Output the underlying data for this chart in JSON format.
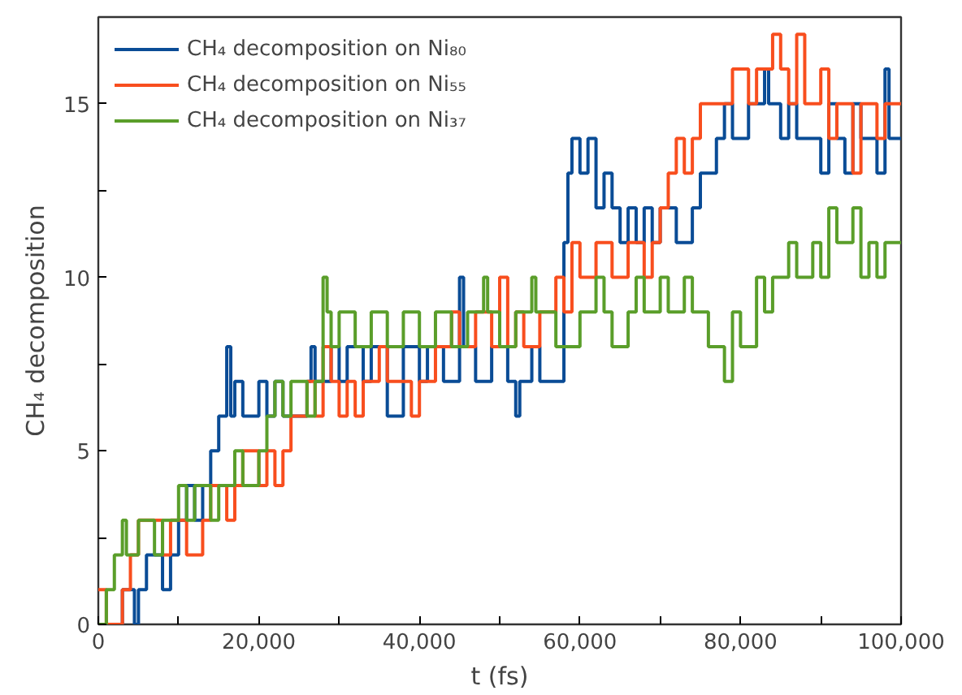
{
  "chart_data": {
    "type": "step",
    "xlabel": "t (fs)",
    "ylabel": "CH₄ decomposition",
    "xlim": [
      0,
      100000
    ],
    "ylim": [
      0,
      17.5
    ],
    "xticks": [
      0,
      {
        "value": 10000,
        "label": null
      },
      {
        "value": 20000,
        "label": "20,000"
      },
      {
        "value": 30000,
        "label": null
      },
      {
        "value": 40000,
        "label": "40,000"
      },
      {
        "value": 50000,
        "label": null
      },
      {
        "value": 60000,
        "label": "60,000"
      },
      {
        "value": 70000,
        "label": null
      },
      {
        "value": 80000,
        "label": "80,000"
      },
      {
        "value": 90000,
        "label": null
      },
      {
        "value": 100000,
        "label": "100,000"
      }
    ],
    "yticks": [
      0,
      {
        "value": 2.5,
        "label": null
      },
      5,
      {
        "value": 7.5,
        "label": null
      },
      10,
      {
        "value": 12.5,
        "label": null
      },
      15
    ],
    "grid": false,
    "legend": "top left",
    "marker": "none",
    "line_style": "solid",
    "series": [
      {
        "name": "CH₄ decomposition on Ni₈₀",
        "color": "#0a4c96",
        "x": [
          0,
          3000,
          4500,
          5000,
          6000,
          8000,
          9000,
          10000,
          11000,
          12000,
          13000,
          14000,
          15000,
          16000,
          16500,
          17000,
          18000,
          20000,
          21000,
          22000,
          23000,
          26000,
          26500,
          27000,
          29000,
          30000,
          31000,
          33000,
          34000,
          36000,
          38000,
          40000,
          41000,
          43000,
          45000,
          45500,
          47000,
          49000,
          51000,
          52000,
          52500,
          54000,
          55000,
          58000,
          58500,
          59000,
          60000,
          61000,
          62000,
          63000,
          64000,
          65000,
          66000,
          67000,
          68000,
          69000,
          70000,
          72000,
          74000,
          75000,
          77000,
          78000,
          79000,
          81000,
          83000,
          83500,
          85000,
          86000,
          87000,
          90000,
          91000,
          92000,
          93000,
          94000,
          95000,
          97000,
          98000,
          98500,
          100000
        ],
        "values": [
          0,
          1,
          0,
          1,
          2,
          1,
          2,
          3,
          4,
          3,
          4,
          5,
          6,
          8,
          6,
          7,
          6,
          7,
          6,
          7,
          6,
          7,
          8,
          7,
          8,
          7,
          8,
          7,
          8,
          6,
          8,
          7,
          8,
          7,
          10,
          8,
          7,
          8,
          7,
          6,
          7,
          8,
          7,
          11,
          13,
          14,
          13,
          14,
          12,
          13,
          12,
          11,
          12,
          11,
          12,
          11,
          12,
          11,
          12,
          13,
          14,
          15,
          14,
          15,
          16,
          15,
          14,
          15,
          14,
          13,
          15,
          14,
          13,
          15,
          14,
          13,
          16,
          14,
          14
        ]
      },
      {
        "name": "CH₄ decomposition on Ni₅₅",
        "color": "#f84e1e",
        "x": [
          0,
          1000,
          3000,
          4000,
          5000,
          8000,
          9000,
          11000,
          13000,
          14000,
          16000,
          17000,
          18000,
          20000,
          21000,
          22000,
          23000,
          24000,
          26000,
          27000,
          28000,
          29000,
          30000,
          31000,
          32000,
          33000,
          35000,
          36000,
          39000,
          40000,
          42000,
          44000,
          45000,
          47000,
          49000,
          50000,
          51000,
          52000,
          53000,
          55000,
          57000,
          58000,
          59000,
          60000,
          62000,
          64000,
          66000,
          68000,
          69000,
          70000,
          71000,
          72000,
          73000,
          74000,
          75000,
          79000,
          81000,
          82000,
          84000,
          85000,
          86000,
          87000,
          88000,
          90000,
          91000,
          92000,
          94000,
          95000,
          97000,
          98000,
          100000
        ],
        "values": [
          1,
          0,
          1,
          2,
          3,
          2,
          3,
          2,
          3,
          4,
          3,
          4,
          5,
          4,
          5,
          4,
          5,
          6,
          7,
          6,
          8,
          7,
          6,
          7,
          6,
          7,
          8,
          7,
          6,
          7,
          8,
          9,
          8,
          9,
          8,
          10,
          8,
          9,
          8,
          9,
          10,
          9,
          11,
          10,
          11,
          10,
          11,
          10,
          11,
          12,
          13,
          14,
          13,
          14,
          15,
          16,
          15,
          16,
          17,
          16,
          15,
          17,
          15,
          16,
          14,
          15,
          13,
          15,
          14,
          15,
          15
        ]
      },
      {
        "name": "CH₄ decomposition on Ni₃₇",
        "color": "#5a9e2a",
        "x": [
          0,
          1000,
          2000,
          3000,
          3500,
          5000,
          7000,
          8000,
          10000,
          11000,
          12000,
          14000,
          15000,
          17000,
          18000,
          20000,
          21000,
          22000,
          23000,
          24000,
          26000,
          27000,
          28000,
          28500,
          29000,
          30000,
          32000,
          34000,
          36000,
          38000,
          40000,
          42000,
          44000,
          46000,
          48000,
          48500,
          50000,
          52000,
          54000,
          54500,
          57000,
          60000,
          62000,
          63000,
          64000,
          66000,
          67000,
          68000,
          70000,
          71000,
          73000,
          74000,
          76000,
          78000,
          79000,
          80000,
          82000,
          83000,
          84000,
          86000,
          87000,
          89000,
          90000,
          91000,
          92000,
          94000,
          95000,
          96000,
          97000,
          98000,
          100000
        ],
        "values": [
          0,
          1,
          2,
          3,
          2,
          3,
          2,
          3,
          4,
          3,
          4,
          3,
          4,
          5,
          4,
          5,
          6,
          7,
          6,
          7,
          6,
          7,
          10,
          9,
          8,
          9,
          8,
          9,
          8,
          9,
          8,
          9,
          8,
          9,
          10,
          9,
          8,
          9,
          10,
          9,
          8,
          9,
          10,
          9,
          8,
          9,
          10,
          9,
          10,
          9,
          10,
          9,
          8,
          7,
          9,
          8,
          10,
          9,
          10,
          11,
          10,
          11,
          10,
          12,
          11,
          12,
          10,
          11,
          10,
          11,
          11
        ]
      }
    ]
  }
}
